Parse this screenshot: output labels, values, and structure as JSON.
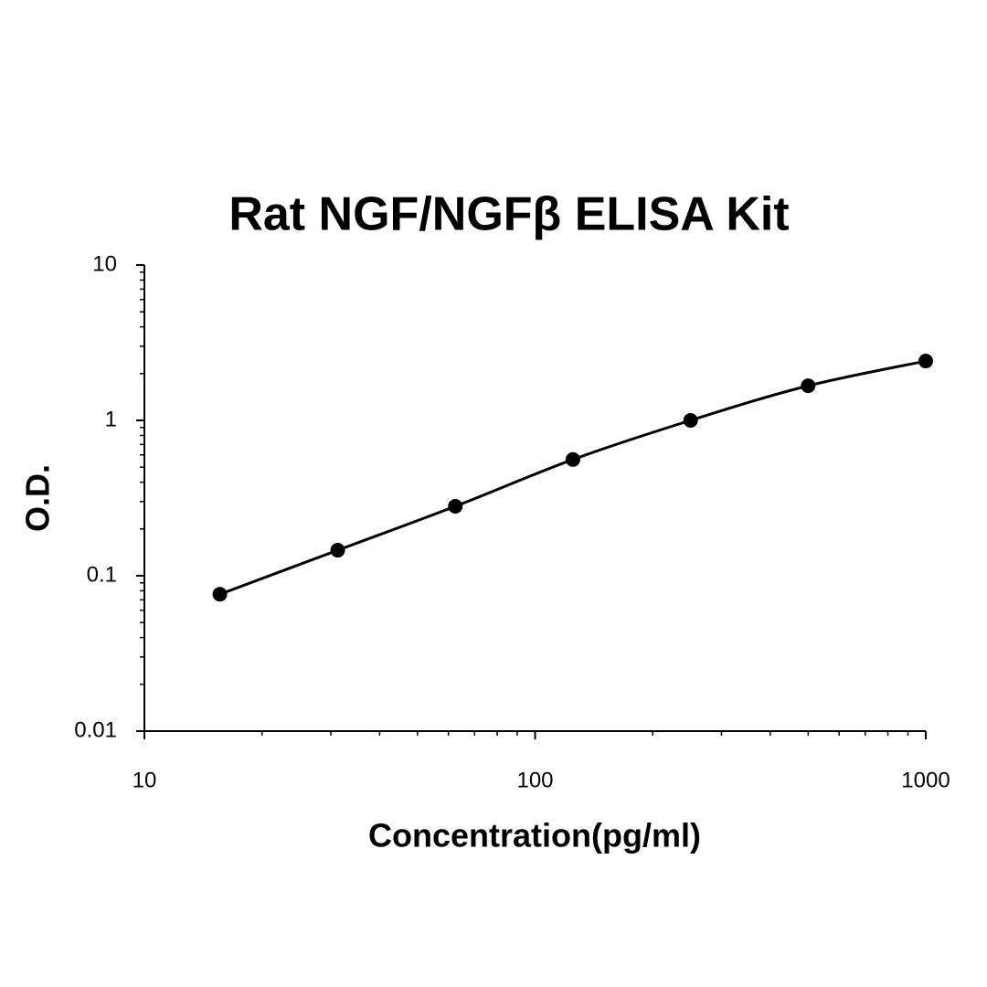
{
  "chart_data": {
    "type": "scatter",
    "title": "Rat NGF/NGFβ ELISA Kit",
    "x_label": "Concentration(pg/ml)",
    "y_label": "O.D.",
    "x": [
      15.6,
      31.25,
      62.5,
      125,
      250,
      500,
      1000
    ],
    "series": [
      {
        "name": "O.D.",
        "color": "#000000",
        "values": [
          0.076,
          0.146,
          0.28,
          0.56,
          1.0,
          1.67,
          2.41
        ]
      }
    ],
    "xlim": [
      10,
      1000
    ],
    "ylim": [
      0.01,
      10
    ],
    "xticks": [
      10,
      100,
      1000
    ],
    "yticks": [
      0.01,
      0.1,
      1,
      10
    ],
    "xscale": "log",
    "yscale": "log",
    "smooth_line": true,
    "grid": false
  }
}
